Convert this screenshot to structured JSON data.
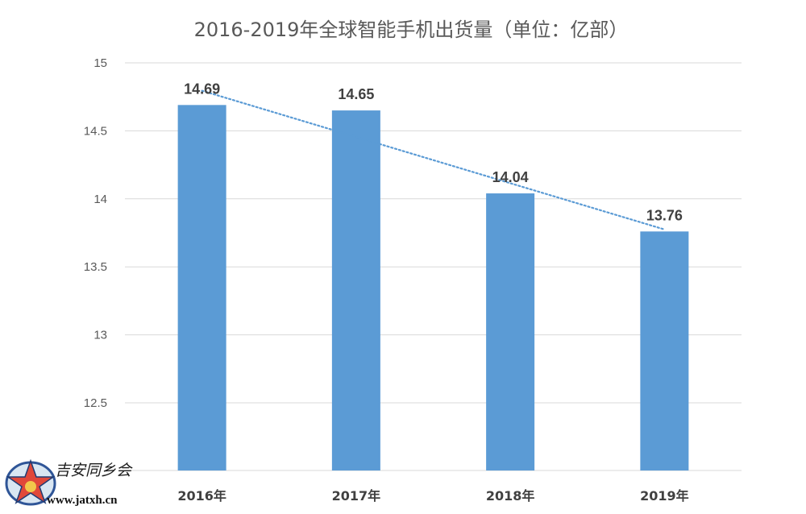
{
  "chart_data": {
    "type": "bar",
    "title": "2016-2019年全球智能手机出货量（单位：亿部）",
    "categories": [
      "2016年",
      "2017年",
      "2018年",
      "2019年"
    ],
    "values": [
      14.69,
      14.65,
      14.04,
      13.76
    ],
    "data_labels": [
      "14.69",
      "14.65",
      "14.04",
      "13.76"
    ],
    "ylim": [
      12.2,
      15
    ],
    "yticks": [
      "12.5",
      "13",
      "13.5",
      "14",
      "14.5",
      "15"
    ],
    "ytick_values": [
      12.5,
      13,
      13.5,
      14,
      14.5,
      15
    ],
    "grid": true,
    "legend": "none",
    "trendline": "linear, dotted",
    "colors": {
      "bar": "#5b9bd5",
      "trendline": "#5b9bd5",
      "grid": "#d9d9d9",
      "text": "#595959"
    }
  },
  "watermark": {
    "name": "吉安同乡会",
    "url": "www.jatxh.cn"
  }
}
